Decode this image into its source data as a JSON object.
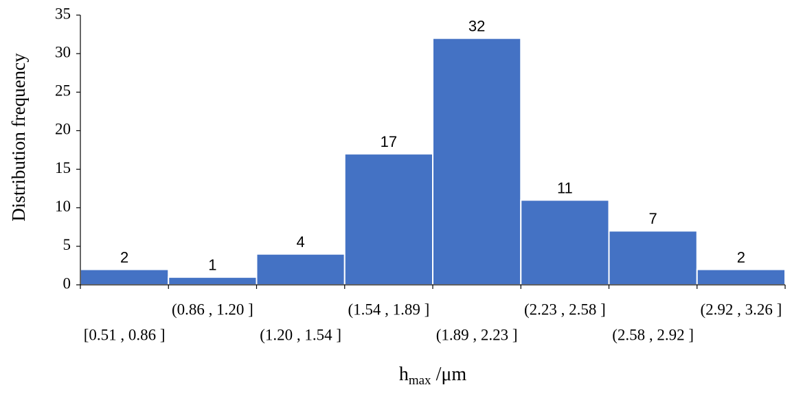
{
  "chart_data": {
    "type": "bar",
    "y_label": "Distribution frequency",
    "x_label": [
      "h",
      "max",
      " /μm"
    ],
    "categories": [
      "[0.51 , 0.86 ]",
      "(0.86 , 1.20 ]",
      "(1.20 , 1.54 ]",
      "(1.54 , 1.89 ]",
      "(1.89 , 2.23 ]",
      "(2.23 , 2.58 ]",
      "(2.58 , 2.92 ]",
      "(2.92 , 3.26 ]"
    ],
    "values": [
      2,
      1,
      4,
      17,
      32,
      11,
      7,
      2
    ],
    "color": "#4472c4",
    "ylim": [
      0,
      35
    ],
    "yticks": [
      0,
      5,
      10,
      15,
      20,
      25,
      30,
      35
    ]
  }
}
